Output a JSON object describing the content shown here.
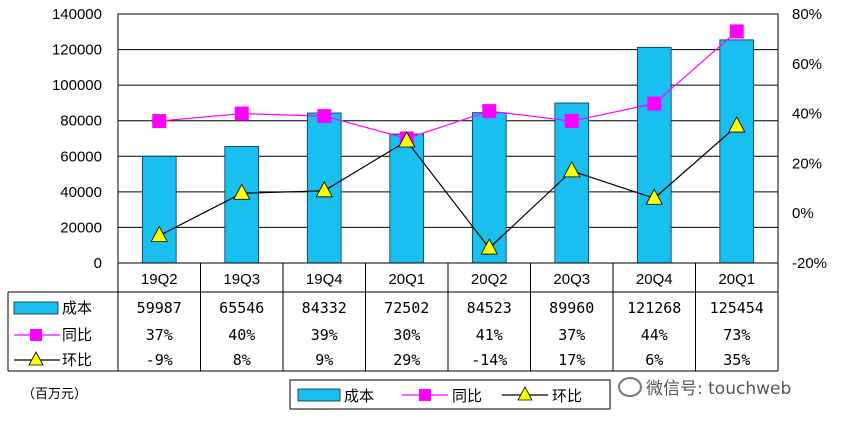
{
  "chart_data": {
    "type": "bar",
    "categories": [
      "19Q2",
      "19Q3",
      "19Q4",
      "20Q1",
      "20Q2",
      "20Q3",
      "20Q4",
      "20Q1"
    ],
    "series": [
      {
        "name": "成本",
        "type": "bar",
        "axis": "left",
        "color": "#18BFEF",
        "values": [
          59987,
          65546,
          84332,
          72502,
          84523,
          89960,
          121268,
          125454
        ],
        "labels": [
          "59987",
          "65546",
          "84332",
          "72502",
          "84523",
          "89960",
          "121268",
          "125454"
        ]
      },
      {
        "name": "同比",
        "type": "line",
        "axis": "right",
        "color": "#FF00FF",
        "marker": "square",
        "values": [
          37,
          40,
          39,
          30,
          41,
          37,
          44,
          73
        ],
        "labels": [
          "37%",
          "40%",
          "39%",
          "30%",
          "41%",
          "37%",
          "44%",
          "73%"
        ]
      },
      {
        "name": "环比",
        "type": "line",
        "axis": "right",
        "color": "#000000",
        "marker": "triangle",
        "marker_color": "#FFFF00",
        "values": [
          -9,
          8,
          9,
          29,
          -14,
          17,
          6,
          35
        ],
        "labels": [
          "-9%",
          "8%",
          "9%",
          "29%",
          "-14%",
          "17%",
          "6%",
          "35%"
        ]
      }
    ],
    "y_left": {
      "ylim": [
        0,
        140000
      ],
      "ticks": [
        "0",
        "20000",
        "40000",
        "60000",
        "80000",
        "100000",
        "120000",
        "140000"
      ]
    },
    "y_right": {
      "ylim": [
        -20,
        80
      ],
      "ticks": [
        "-20%",
        "0%",
        "20%",
        "40%",
        "60%",
        "80%"
      ]
    },
    "unit_label": "（百万元）",
    "grid": "horizontal",
    "legend": "bottom",
    "data_table": true
  },
  "watermark": "微信号: touchweb"
}
